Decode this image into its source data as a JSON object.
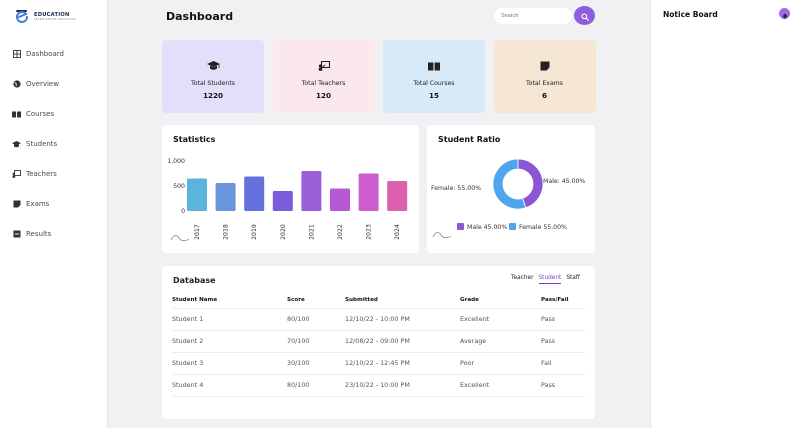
{
  "brand": {
    "name": "EDUCATION",
    "tagline": "LEARN ONLINE EDUCATION"
  },
  "sidebar": {
    "items": [
      {
        "label": "Dashboard",
        "icon": "grid-icon"
      },
      {
        "label": "Overview",
        "icon": "globe-icon"
      },
      {
        "label": "Courses",
        "icon": "book-icon"
      },
      {
        "label": "Students",
        "icon": "graduation-cap-icon"
      },
      {
        "label": "Teachers",
        "icon": "teacher-board-icon"
      },
      {
        "label": "Exams",
        "icon": "note-icon"
      },
      {
        "label": "Results",
        "icon": "result-icon"
      }
    ]
  },
  "header": {
    "title": "Dashboard",
    "search_placeholder": "Search"
  },
  "cards": [
    {
      "label": "Total Students",
      "value": "1220",
      "bg": "#e3defa"
    },
    {
      "label": "Total Teachers",
      "value": "120",
      "bg": "#fae8ec"
    },
    {
      "label": "Total Courses",
      "value": "15",
      "bg": "#d8e9f8"
    },
    {
      "label": "Total Exams",
      "value": "6",
      "bg": "#f6e6d4"
    }
  ],
  "statistics": {
    "title": "Statistics"
  },
  "ratio": {
    "title": "Student Ratio"
  },
  "chart_data": [
    {
      "type": "bar",
      "title": "Statistics",
      "categories": [
        "2017",
        "2018",
        "2019",
        "2020",
        "2021",
        "2022",
        "2023",
        "2024"
      ],
      "values": [
        650,
        560,
        690,
        400,
        800,
        450,
        750,
        600
      ],
      "colors": [
        "#5ab4dc",
        "#6a95dc",
        "#6470dc",
        "#7b5cdc",
        "#9a5ed8",
        "#b55ad4",
        "#ce5dcf",
        "#dc5fb0"
      ],
      "yticks": [
        "1,000",
        "500",
        "0"
      ],
      "ylim": [
        0,
        1000
      ]
    },
    {
      "type": "pie",
      "title": "Student Ratio",
      "labels": [
        "Male",
        "Female"
      ],
      "values": [
        45.0,
        55.0
      ],
      "colors": [
        "#8a56d1",
        "#4ea6ef"
      ],
      "slice_labels": [
        "Male: 45.00%",
        "Female: 55.00%"
      ],
      "legend": [
        "Male 45.00%",
        "Female 55.00%"
      ]
    }
  ],
  "database": {
    "title": "Database",
    "tabs": [
      "Teacher",
      "Student",
      "Staff"
    ],
    "active_tab": "Student",
    "columns": [
      "Student Name",
      "Score",
      "Submitted",
      "Grade",
      "Pass/Fail"
    ],
    "rows": [
      [
        "Student 1",
        "80/100",
        "12/10/22 - 10:00 PM",
        "Excellent",
        "Pass"
      ],
      [
        "Student 2",
        "70/100",
        "12/08/22 - 09:00 PM",
        "Average",
        "Pass"
      ],
      [
        "Student 3",
        "30/100",
        "12/10/22 - 12:45 PM",
        "Poor",
        "Fail"
      ],
      [
        "Student 4",
        "80/100",
        "23/10/22 - 10:00 PM",
        "Excellent",
        "Pass"
      ]
    ]
  },
  "notice": {
    "title": "Notice Board"
  }
}
